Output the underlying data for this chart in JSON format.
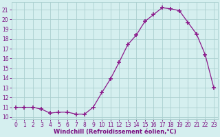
{
  "x": [
    0,
    1,
    2,
    3,
    4,
    5,
    6,
    7,
    8,
    9,
    10,
    11,
    12,
    13,
    14,
    15,
    16,
    17,
    18,
    19,
    20,
    21,
    22,
    23
  ],
  "y": [
    11,
    11,
    11,
    10.8,
    10.4,
    10.5,
    10.5,
    10.3,
    10.3,
    11,
    12.5,
    13.9,
    15.6,
    17.4,
    18.4,
    19.8,
    20.5,
    21.2,
    21.1,
    20.9,
    19.7,
    18.5,
    16.4,
    13.0
  ],
  "line_color": "#8b1a8b",
  "marker": "+",
  "marker_size": 4,
  "marker_linewidth": 1.2,
  "background_color": "#d5efef",
  "grid_color": "#aacfcf",
  "xlabel": "Windchill (Refroidissement éolien,°C)",
  "ytick_min": 10,
  "ytick_max": 21,
  "xlim": [
    -0.5,
    23.5
  ],
  "ylim": [
    9.8,
    21.8
  ],
  "tick_color": "#7b1082",
  "label_color": "#7b1082",
  "font_size": 5.5,
  "xlabel_font_size": 6.0,
  "line_width": 0.9
}
